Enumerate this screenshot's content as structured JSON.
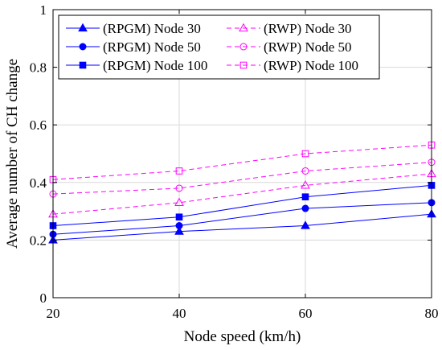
{
  "chart_data": {
    "type": "line",
    "title": "",
    "xlabel": "Node speed (km/h)",
    "ylabel": "Average number of CH change",
    "x": [
      20,
      40,
      60,
      80
    ],
    "xlim": [
      20,
      80
    ],
    "ylim": [
      0,
      1
    ],
    "xticks": [
      20,
      40,
      60,
      80
    ],
    "yticks": [
      0,
      0.2,
      0.4,
      0.6,
      0.8,
      1
    ],
    "xtick_labels": [
      "20",
      "40",
      "60",
      "80"
    ],
    "ytick_labels": [
      "0",
      "0.2",
      "0.4",
      "0.6",
      "0.8",
      "1"
    ],
    "grid": true,
    "legend_position": "top-left",
    "legend_columns": 2,
    "series": [
      {
        "name": "(RPGM) Node 30",
        "values": [
          0.2,
          0.23,
          0.25,
          0.29
        ],
        "color": "#0000ff",
        "marker": "triangle",
        "marker_fill": "filled",
        "line_style": "solid"
      },
      {
        "name": "(RPGM) Node 50",
        "values": [
          0.22,
          0.25,
          0.31,
          0.33
        ],
        "color": "#0000ff",
        "marker": "circle",
        "marker_fill": "filled",
        "line_style": "solid"
      },
      {
        "name": "(RPGM) Node 100",
        "values": [
          0.25,
          0.28,
          0.35,
          0.39
        ],
        "color": "#0000ff",
        "marker": "square",
        "marker_fill": "filled",
        "line_style": "solid"
      },
      {
        "name": "(RWP) Node 30",
        "values": [
          0.29,
          0.33,
          0.39,
          0.43
        ],
        "color": "#ff00ff",
        "marker": "triangle",
        "marker_fill": "open",
        "line_style": "dashed"
      },
      {
        "name": "(RWP) Node 50",
        "values": [
          0.36,
          0.38,
          0.44,
          0.47
        ],
        "color": "#ff00ff",
        "marker": "circle",
        "marker_fill": "open",
        "line_style": "dashed"
      },
      {
        "name": "(RWP) Node 100",
        "values": [
          0.41,
          0.44,
          0.5,
          0.53
        ],
        "color": "#ff00ff",
        "marker": "square",
        "marker_fill": "open",
        "line_style": "dashed"
      }
    ]
  }
}
